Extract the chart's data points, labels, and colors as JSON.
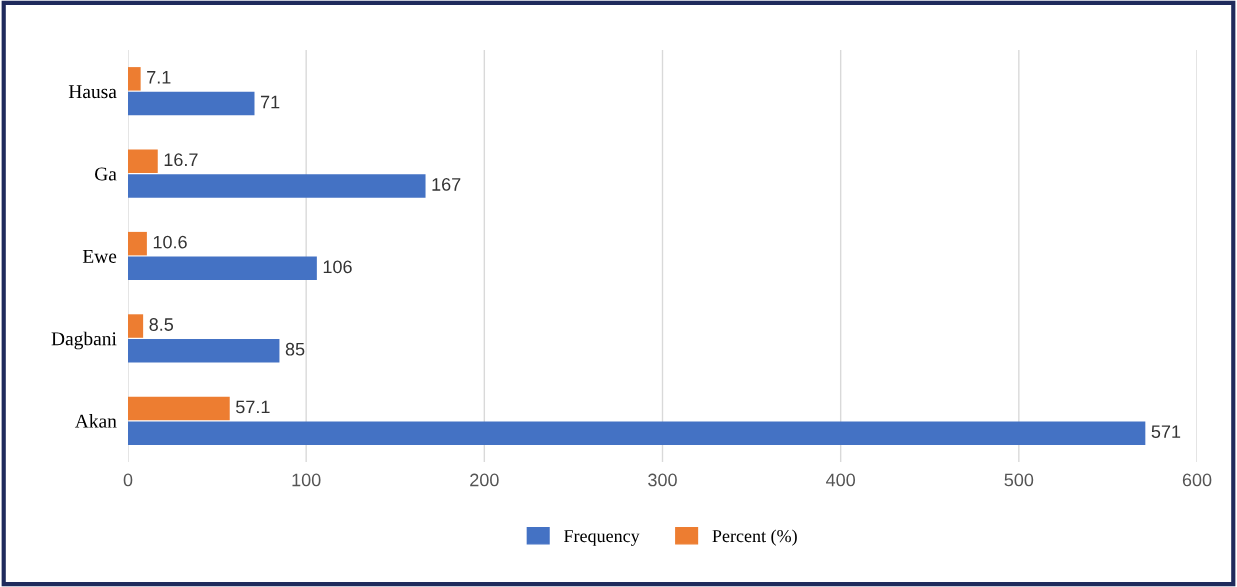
{
  "chart_data": {
    "type": "bar",
    "orientation": "horizontal",
    "categories": [
      "Hausa",
      "Ga",
      "Ewe",
      "Dagbani",
      "Akan"
    ],
    "series": [
      {
        "name": "Frequency",
        "color": "#4472c4",
        "values": [
          71,
          167,
          106,
          85,
          571
        ]
      },
      {
        "name": "Percent (%)",
        "color": "#ed7d31",
        "values": [
          7.1,
          16.7,
          10.6,
          8.5,
          57.1
        ]
      }
    ],
    "xlim": [
      0,
      600
    ],
    "xticks": [
      0,
      100,
      200,
      300,
      400,
      500,
      600
    ],
    "grid": "x",
    "legend": "bottom",
    "data_labels": true
  }
}
